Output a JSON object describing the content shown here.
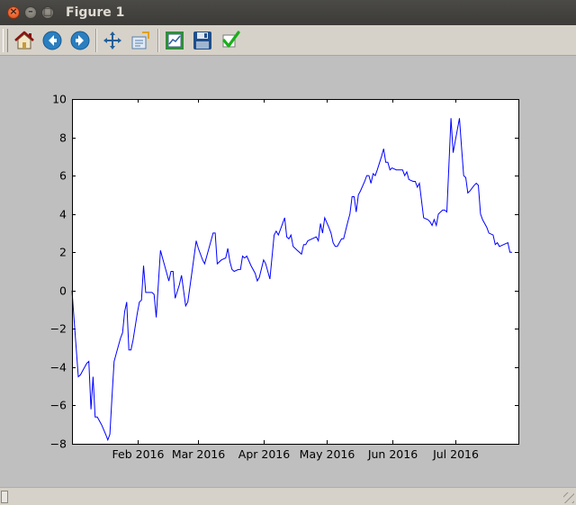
{
  "window": {
    "title": "Figure 1",
    "buttons": [
      "close",
      "minimize",
      "maximize"
    ]
  },
  "toolbar": {
    "tools": [
      {
        "name": "home",
        "icon": "home-icon"
      },
      {
        "name": "back",
        "icon": "back-arrow-icon"
      },
      {
        "name": "forward",
        "icon": "forward-arrow-icon"
      },
      {
        "name": "pan",
        "icon": "pan-move-icon"
      },
      {
        "name": "zoom",
        "icon": "zoom-rect-icon"
      },
      {
        "name": "configure-subplots",
        "icon": "subplots-icon"
      },
      {
        "name": "save",
        "icon": "floppy-save-icon"
      },
      {
        "name": "edit-parameters",
        "icon": "checkmark-icon"
      }
    ]
  },
  "statusbar": {
    "message": ""
  },
  "colors": {
    "line": "#0000ff",
    "figure_bg": "#bfbfbf",
    "axes_bg": "#ffffff",
    "toolbar_bg": "#d6d2c9"
  },
  "chart_data": {
    "type": "line",
    "title": "",
    "xlabel": "",
    "ylabel": "",
    "x_range": [
      "2016-01-01",
      "2016-07-31"
    ],
    "ylim": [
      -8,
      10
    ],
    "yticks": [
      -8,
      -6,
      -4,
      -2,
      0,
      2,
      4,
      6,
      8,
      10
    ],
    "ytick_labels": [
      "−8",
      "−6",
      "−4",
      "−2",
      "0",
      "2",
      "4",
      "6",
      "8",
      "10"
    ],
    "xticks": [
      {
        "date": "2016-02-01",
        "label": "Feb 2016"
      },
      {
        "date": "2016-03-01",
        "label": "Mar 2016"
      },
      {
        "date": "2016-04-01",
        "label": "Apr 2016"
      },
      {
        "date": "2016-05-01",
        "label": "May 2016"
      },
      {
        "date": "2016-06-01",
        "label": "Jun 2016"
      },
      {
        "date": "2016-07-01",
        "label": "Jul 2016"
      }
    ],
    "grid": false,
    "series": [
      {
        "color": "#0000ff",
        "points": [
          [
            "2016-01-01",
            0.0
          ],
          [
            "2016-01-02",
            -1.5
          ],
          [
            "2016-01-04",
            -4.5
          ],
          [
            "2016-01-05",
            -4.4
          ],
          [
            "2016-01-06",
            -4.2
          ],
          [
            "2016-01-08",
            -3.8
          ],
          [
            "2016-01-09",
            -3.7
          ],
          [
            "2016-01-10",
            -6.2
          ],
          [
            "2016-01-11",
            -4.5
          ],
          [
            "2016-01-12",
            -6.6
          ],
          [
            "2016-01-13",
            -6.6
          ],
          [
            "2016-01-15",
            -7.0
          ],
          [
            "2016-01-17",
            -7.5
          ],
          [
            "2016-01-18",
            -7.8
          ],
          [
            "2016-01-19",
            -7.5
          ],
          [
            "2016-01-20",
            -5.5
          ],
          [
            "2016-01-21",
            -3.7
          ],
          [
            "2016-01-22",
            -3.3
          ],
          [
            "2016-01-24",
            -2.5
          ],
          [
            "2016-01-25",
            -2.2
          ],
          [
            "2016-01-26",
            -1.1
          ],
          [
            "2016-01-27",
            -0.6
          ],
          [
            "2016-01-28",
            -3.1
          ],
          [
            "2016-01-29",
            -3.1
          ],
          [
            "2016-01-30",
            -2.6
          ],
          [
            "2016-02-01",
            -1.2
          ],
          [
            "2016-02-02",
            -0.6
          ],
          [
            "2016-02-03",
            -0.5
          ],
          [
            "2016-02-04",
            1.3
          ],
          [
            "2016-02-05",
            -0.1
          ],
          [
            "2016-02-08",
            -0.1
          ],
          [
            "2016-02-09",
            -0.2
          ],
          [
            "2016-02-10",
            -1.4
          ],
          [
            "2016-02-12",
            2.1
          ],
          [
            "2016-02-13",
            1.7
          ],
          [
            "2016-02-15",
            0.9
          ],
          [
            "2016-02-16",
            0.5
          ],
          [
            "2016-02-17",
            1.0
          ],
          [
            "2016-02-18",
            1.0
          ],
          [
            "2016-02-19",
            -0.4
          ],
          [
            "2016-02-21",
            0.3
          ],
          [
            "2016-02-22",
            0.8
          ],
          [
            "2016-02-24",
            -0.8
          ],
          [
            "2016-02-25",
            -0.6
          ],
          [
            "2016-02-27",
            1.0
          ],
          [
            "2016-02-29",
            2.6
          ],
          [
            "2016-03-01",
            2.2
          ],
          [
            "2016-03-03",
            1.6
          ],
          [
            "2016-03-04",
            1.4
          ],
          [
            "2016-03-06",
            2.2
          ],
          [
            "2016-03-08",
            3.0
          ],
          [
            "2016-03-09",
            3.0
          ],
          [
            "2016-03-10",
            1.4
          ],
          [
            "2016-03-12",
            1.6
          ],
          [
            "2016-03-14",
            1.7
          ],
          [
            "2016-03-15",
            2.2
          ],
          [
            "2016-03-16",
            1.5
          ],
          [
            "2016-03-17",
            1.1
          ],
          [
            "2016-03-18",
            1.0
          ],
          [
            "2016-03-20",
            1.1
          ],
          [
            "2016-03-21",
            1.1
          ],
          [
            "2016-03-22",
            1.8
          ],
          [
            "2016-03-23",
            1.7
          ],
          [
            "2016-03-24",
            1.8
          ],
          [
            "2016-03-26",
            1.3
          ],
          [
            "2016-03-28",
            0.9
          ],
          [
            "2016-03-29",
            0.5
          ],
          [
            "2016-03-30",
            0.7
          ],
          [
            "2016-04-01",
            1.6
          ],
          [
            "2016-04-02",
            1.4
          ],
          [
            "2016-04-04",
            0.6
          ],
          [
            "2016-04-06",
            2.9
          ],
          [
            "2016-04-07",
            3.1
          ],
          [
            "2016-04-08",
            2.9
          ],
          [
            "2016-04-10",
            3.5
          ],
          [
            "2016-04-11",
            3.8
          ],
          [
            "2016-04-12",
            2.8
          ],
          [
            "2016-04-13",
            2.7
          ],
          [
            "2016-04-14",
            2.9
          ],
          [
            "2016-04-15",
            2.3
          ],
          [
            "2016-04-17",
            2.1
          ],
          [
            "2016-04-19",
            1.9
          ],
          [
            "2016-04-20",
            2.4
          ],
          [
            "2016-04-21",
            2.4
          ],
          [
            "2016-04-22",
            2.6
          ],
          [
            "2016-04-24",
            2.7
          ],
          [
            "2016-04-26",
            2.8
          ],
          [
            "2016-04-27",
            2.6
          ],
          [
            "2016-04-28",
            3.5
          ],
          [
            "2016-04-29",
            3.0
          ],
          [
            "2016-04-30",
            3.8
          ],
          [
            "2016-05-02",
            3.3
          ],
          [
            "2016-05-03",
            3.0
          ],
          [
            "2016-05-04",
            2.5
          ],
          [
            "2016-05-05",
            2.3
          ],
          [
            "2016-05-06",
            2.3
          ],
          [
            "2016-05-08",
            2.7
          ],
          [
            "2016-05-09",
            2.7
          ],
          [
            "2016-05-11",
            3.6
          ],
          [
            "2016-05-12",
            4.0
          ],
          [
            "2016-05-13",
            4.9
          ],
          [
            "2016-05-14",
            4.9
          ],
          [
            "2016-05-15",
            4.1
          ],
          [
            "2016-05-16",
            5.0
          ],
          [
            "2016-05-17",
            5.2
          ],
          [
            "2016-05-19",
            5.7
          ],
          [
            "2016-05-20",
            6.0
          ],
          [
            "2016-05-21",
            6.0
          ],
          [
            "2016-05-22",
            5.6
          ],
          [
            "2016-05-23",
            6.1
          ],
          [
            "2016-05-24",
            6.0
          ],
          [
            "2016-05-25",
            6.3
          ],
          [
            "2016-05-27",
            7.0
          ],
          [
            "2016-05-28",
            7.4
          ],
          [
            "2016-05-29",
            6.7
          ],
          [
            "2016-05-30",
            6.7
          ],
          [
            "2016-05-31",
            6.3
          ],
          [
            "2016-06-01",
            6.4
          ],
          [
            "2016-06-03",
            6.3
          ],
          [
            "2016-06-04",
            6.3
          ],
          [
            "2016-06-06",
            6.3
          ],
          [
            "2016-06-07",
            6.0
          ],
          [
            "2016-06-08",
            6.2
          ],
          [
            "2016-06-09",
            5.8
          ],
          [
            "2016-06-11",
            5.7
          ],
          [
            "2016-06-12",
            5.7
          ],
          [
            "2016-06-13",
            5.4
          ],
          [
            "2016-06-14",
            5.6
          ],
          [
            "2016-06-16",
            3.8
          ],
          [
            "2016-06-18",
            3.7
          ],
          [
            "2016-06-19",
            3.6
          ],
          [
            "2016-06-20",
            3.4
          ],
          [
            "2016-06-21",
            3.7
          ],
          [
            "2016-06-22",
            3.4
          ],
          [
            "2016-06-23",
            4.0
          ],
          [
            "2016-06-25",
            4.2
          ],
          [
            "2016-06-26",
            4.2
          ],
          [
            "2016-06-27",
            4.1
          ],
          [
            "2016-06-29",
            9.0
          ],
          [
            "2016-06-30",
            7.2
          ],
          [
            "2016-07-01",
            7.8
          ],
          [
            "2016-07-03",
            9.0
          ],
          [
            "2016-07-04",
            7.5
          ],
          [
            "2016-07-05",
            6.0
          ],
          [
            "2016-07-06",
            5.9
          ],
          [
            "2016-07-07",
            5.1
          ],
          [
            "2016-07-08",
            5.2
          ],
          [
            "2016-07-10",
            5.5
          ],
          [
            "2016-07-11",
            5.6
          ],
          [
            "2016-07-12",
            5.5
          ],
          [
            "2016-07-13",
            4.0
          ],
          [
            "2016-07-14",
            3.7
          ],
          [
            "2016-07-16",
            3.3
          ],
          [
            "2016-07-17",
            3.0
          ],
          [
            "2016-07-19",
            2.9
          ],
          [
            "2016-07-20",
            2.4
          ],
          [
            "2016-07-21",
            2.5
          ],
          [
            "2016-07-22",
            2.3
          ],
          [
            "2016-07-24",
            2.4
          ],
          [
            "2016-07-26",
            2.5
          ],
          [
            "2016-07-27",
            2.0
          ],
          [
            "2016-07-28",
            2.0
          ]
        ]
      }
    ]
  }
}
